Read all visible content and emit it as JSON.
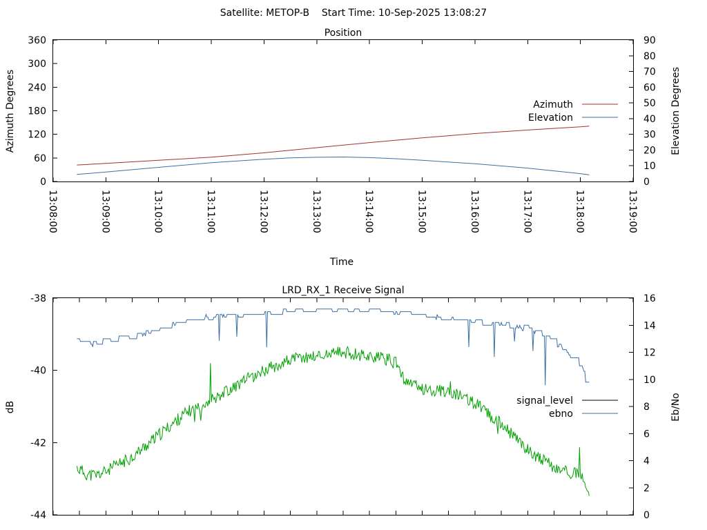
{
  "figure_title": "Satellite: METOP-B    Start Time: 10-Sep-2025 13:08:27",
  "colors": {
    "azimuth": "#a03232",
    "elevation": "#3a6ea5",
    "signal_level": "#00a000",
    "ebno": "#3a6ea5",
    "legend_signal_sample": "#000000"
  },
  "chart_data": [
    {
      "type": "line",
      "title": "Position",
      "xlabel": "Time",
      "ylabel": "Azimuth Degrees",
      "y2label": "Elevation Degrees",
      "x_ticks": [
        "13:08:00",
        "13:09:00",
        "13:10:00",
        "13:11:00",
        "13:12:00",
        "13:13:00",
        "13:14:00",
        "13:15:00",
        "13:16:00",
        "13:17:00",
        "13:18:00",
        "13:19:00"
      ],
      "xlim": [
        "13:08:00",
        "13:19:00"
      ],
      "ylim": [
        0,
        360
      ],
      "y_ticks": [
        "0",
        "60",
        "120",
        "180",
        "240",
        "300",
        "360"
      ],
      "y2lim": [
        0,
        90
      ],
      "y2_ticks": [
        "0",
        "10",
        "20",
        "30",
        "40",
        "50",
        "60",
        "70",
        "80",
        "90"
      ],
      "legend_position": "right",
      "series": [
        {
          "name": "Azimuth",
          "axis": "y",
          "x": [
            "13:08:27",
            "13:09:00",
            "13:10:00",
            "13:11:00",
            "13:12:00",
            "13:13:00",
            "13:14:00",
            "13:15:00",
            "13:16:00",
            "13:17:00",
            "13:18:00",
            "13:18:10"
          ],
          "y": [
            42,
            46,
            54,
            62,
            73,
            86,
            99,
            111,
            122,
            131,
            139,
            141
          ]
        },
        {
          "name": "Elevation",
          "axis": "y2",
          "x": [
            "13:08:27",
            "13:09:00",
            "13:10:00",
            "13:11:00",
            "13:12:00",
            "13:12:30",
            "13:13:00",
            "13:13:30",
            "13:14:00",
            "13:14:30",
            "13:15:00",
            "13:16:00",
            "13:17:00",
            "13:18:00",
            "13:18:10"
          ],
          "y": [
            4.5,
            6,
            9,
            12,
            14.2,
            15,
            15.4,
            15.6,
            15.2,
            14.5,
            13.5,
            11.3,
            8.5,
            5,
            4.2
          ]
        }
      ]
    },
    {
      "type": "line",
      "title": "LRD_RX_1 Receive Signal",
      "ylabel": "dB",
      "y2label": "Eb/No",
      "xlim": [
        "13:08:00",
        "13:19:00"
      ],
      "ylim": [
        -44,
        -38
      ],
      "y_ticks": [
        "-44",
        "-42",
        "-40",
        "-38"
      ],
      "y2lim": [
        0,
        16
      ],
      "y2_ticks": [
        "0",
        "2",
        "4",
        "6",
        "8",
        "10",
        "12",
        "14",
        "16"
      ],
      "legend_position": "right",
      "series": [
        {
          "name": "signal_level",
          "axis": "y",
          "x": [
            "13:08:27",
            "13:08:40",
            "13:08:50",
            "13:09:00",
            "13:09:30",
            "13:10:00",
            "13:10:30",
            "13:11:00",
            "13:11:30",
            "13:12:00",
            "13:12:30",
            "13:13:00",
            "13:13:30",
            "13:14:00",
            "13:14:20",
            "13:14:30",
            "13:14:40",
            "13:15:00",
            "13:15:30",
            "13:16:00",
            "13:16:30",
            "13:17:00",
            "13:17:30",
            "13:18:00",
            "13:18:10"
          ],
          "y": [
            -42.7,
            -42.9,
            -42.9,
            -42.8,
            -42.4,
            -41.8,
            -41.2,
            -40.8,
            -40.4,
            -40.0,
            -39.7,
            -39.6,
            -39.5,
            -39.6,
            -39.7,
            -39.8,
            -40.3,
            -40.5,
            -40.6,
            -40.9,
            -41.5,
            -42.2,
            -42.7,
            -42.9,
            -43.5
          ]
        },
        {
          "name": "ebno",
          "axis": "y2",
          "x": [
            "13:08:27",
            "13:08:40",
            "13:09:00",
            "13:09:30",
            "13:10:00",
            "13:10:30",
            "13:11:00",
            "13:11:30",
            "13:12:00",
            "13:12:30",
            "13:13:00",
            "13:13:30",
            "13:14:00",
            "13:14:30",
            "13:15:00",
            "13:15:30",
            "13:16:00",
            "13:16:30",
            "13:17:00",
            "13:17:30",
            "13:18:00",
            "13:18:10"
          ],
          "y": [
            12.8,
            12.5,
            12.9,
            13.1,
            13.7,
            14.3,
            14.6,
            14.8,
            14.9,
            15.1,
            15.1,
            15.1,
            15.1,
            15.0,
            14.7,
            14.5,
            14.3,
            14.1,
            13.7,
            12.9,
            11.2,
            9.2
          ]
        }
      ]
    }
  ]
}
